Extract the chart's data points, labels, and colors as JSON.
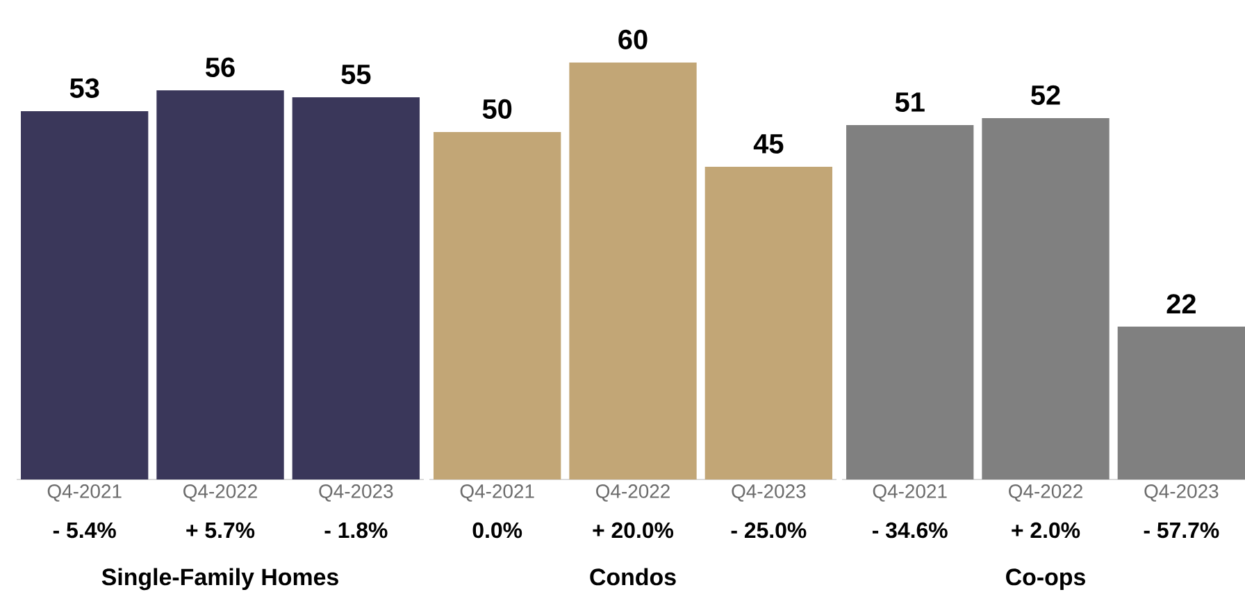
{
  "chart_data": [
    {
      "type": "bar",
      "categories": [
        "Q4-2021",
        "Q4-2022",
        "Q4-2023"
      ],
      "values": [
        53,
        56,
        55
      ],
      "color": "#3a375a",
      "data_labels": true,
      "xlabel": "Single-Family Homes",
      "annotations": [
        "- 5.4%",
        "+ 5.7%",
        "- 1.8%"
      ]
    },
    {
      "type": "bar",
      "categories": [
        "Q4-2021",
        "Q4-2022",
        "Q4-2023"
      ],
      "values": [
        50,
        60,
        45
      ],
      "color": "#c2a676",
      "data_labels": true,
      "xlabel": "Condos",
      "annotations": [
        "0.0%",
        "+ 20.0%",
        "- 25.0%"
      ]
    },
    {
      "type": "bar",
      "categories": [
        "Q4-2021",
        "Q4-2022",
        "Q4-2023"
      ],
      "values": [
        51,
        52,
        22
      ],
      "color": "#808080",
      "data_labels": true,
      "xlabel": "Co-ops",
      "annotations": [
        "- 34.6%",
        "+ 2.0%",
        "- 57.7%"
      ]
    }
  ]
}
